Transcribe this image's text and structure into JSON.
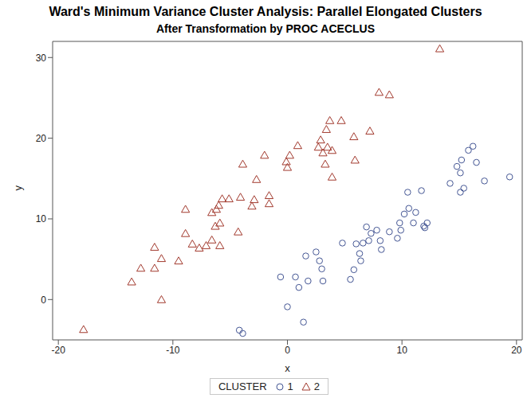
{
  "chart_data": {
    "type": "scatter",
    "title": "Ward's Minimum Variance Cluster Analysis: Parallel Elongated Clusters",
    "subtitle": "After Transformation by PROC ACECLUS",
    "x_label": "x",
    "y_label": "y",
    "legend_title": "CLUSTER",
    "legend": "bottom",
    "grid": false,
    "xlim": [
      -20.5,
      20.5
    ],
    "ylim": [
      -5,
      32
    ],
    "xticks": [
      -20,
      -10,
      0,
      10,
      20
    ],
    "yticks": [
      0,
      10,
      20,
      30
    ],
    "series": [
      {
        "name": "1",
        "color": "#445694",
        "marker": "circle",
        "x": [
          -4.2,
          -3.9,
          -0.6,
          0.0,
          0.7,
          1.0,
          1.4,
          1.6,
          1.8,
          2.5,
          2.8,
          3.0,
          3.1,
          4.8,
          5.5,
          5.8,
          6.0,
          6.3,
          6.4,
          6.6,
          6.9,
          7.1,
          7.3,
          7.8,
          8.1,
          8.2,
          8.9,
          9.6,
          9.8,
          9.9,
          10.2,
          10.5,
          10.6,
          11.0,
          11.2,
          11.7,
          11.9,
          12.0,
          12.2,
          14.2,
          14.8,
          15.1,
          15.1,
          15.2,
          15.4,
          15.8,
          16.2,
          16.5,
          17.2,
          19.4
        ],
        "values": [
          -3.8,
          -4.2,
          2.8,
          -0.9,
          2.8,
          1.5,
          -2.8,
          5.4,
          2.3,
          5.9,
          4.8,
          3.8,
          2.3,
          7.0,
          2.5,
          3.7,
          6.9,
          5.7,
          4.8,
          7.0,
          9.0,
          7.3,
          8.2,
          8.6,
          7.3,
          6.2,
          8.4,
          7.6,
          9.5,
          8.6,
          10.6,
          13.3,
          11.3,
          9.5,
          10.8,
          13.5,
          9.1,
          8.9,
          9.5,
          14.4,
          16.5,
          13.3,
          15.7,
          17.3,
          13.8,
          18.5,
          19.0,
          17.0,
          14.7,
          15.2
        ]
      },
      {
        "name": "2",
        "color": "#A23A2E",
        "marker": "triangle",
        "x": [
          -17.8,
          -13.6,
          -12.8,
          -11.6,
          -11.6,
          -11.0,
          -11.0,
          -9.5,
          -8.9,
          -8.9,
          -8.3,
          -7.7,
          -7.1,
          -6.6,
          -6.6,
          -6.3,
          -6.2,
          -6.0,
          -5.9,
          -5.9,
          -5.7,
          -5.1,
          -4.3,
          -4.1,
          -3.9,
          -3.1,
          -2.9,
          -2.7,
          -2.0,
          -1.6,
          -1.6,
          -0.1,
          0.0,
          0.2,
          0.9,
          2.7,
          2.9,
          3.1,
          3.3,
          3.4,
          3.5,
          3.7,
          3.9,
          3.9,
          4.7,
          5.8,
          5.9,
          7.2,
          8.0,
          8.9,
          13.3
        ],
        "values": [
          -3.8,
          2.1,
          3.8,
          6.4,
          3.8,
          5.0,
          -0.1,
          4.7,
          11.1,
          8.1,
          6.8,
          6.3,
          6.6,
          7.3,
          10.7,
          9.0,
          11.1,
          11.6,
          9.4,
          6.6,
          12.4,
          12.4,
          8.3,
          12.6,
          16.7,
          11.5,
          12.3,
          14.8,
          17.8,
          12.8,
          11.8,
          17.0,
          16.3,
          17.8,
          19.0,
          18.8,
          19.7,
          18.1,
          16.7,
          21.0,
          18.8,
          22.1,
          18.4,
          15.1,
          22.1,
          20.1,
          17.2,
          20.8,
          25.6,
          25.3,
          31.0
        ]
      }
    ]
  }
}
